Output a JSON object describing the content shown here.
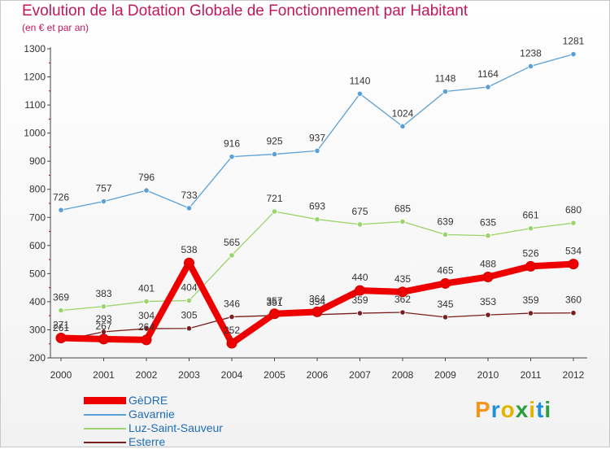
{
  "chart_data": {
    "type": "line",
    "title": "Evolution de la Dotation Globale de Fonctionnement par Habitant",
    "subtitle": "(en € et par an)",
    "categories": [
      "2000",
      "2001",
      "2002",
      "2003",
      "2004",
      "2005",
      "2006",
      "2007",
      "2008",
      "2009",
      "2010",
      "2011",
      "2012"
    ],
    "ylim": [
      200,
      1300
    ],
    "yticks": [
      200,
      300,
      400,
      500,
      600,
      700,
      800,
      900,
      1000,
      1100,
      1200,
      1300
    ],
    "grid": false,
    "legend_position": "bottom-left",
    "series": [
      {
        "name": "Gavarnie",
        "color": "#5aa0d8",
        "values": [
          726,
          757,
          796,
          733,
          916,
          925,
          937,
          1140,
          1024,
          1148,
          1164,
          1238,
          1281
        ]
      },
      {
        "name": "Luz-Saint-Sauveur",
        "color": "#9ad46a",
        "values": [
          369,
          383,
          401,
          404,
          565,
          721,
          693,
          675,
          685,
          639,
          635,
          661,
          680
        ]
      },
      {
        "name": "Esterre",
        "color": "#7a1f1f",
        "values": [
          261,
          293,
          304,
          305,
          346,
          351,
          354,
          359,
          362,
          345,
          353,
          359,
          360
        ]
      },
      {
        "name": "GèDRE",
        "color": "#ee0000",
        "values": [
          271,
          267,
          264,
          538,
          252,
          357,
          364,
          440,
          435,
          465,
          488,
          526,
          534
        ]
      }
    ],
    "legend": [
      "GèDRE",
      "Gavarnie",
      "Luz-Saint-Sauveur",
      "Esterre"
    ]
  },
  "brand": {
    "text": "Proxiti"
  }
}
